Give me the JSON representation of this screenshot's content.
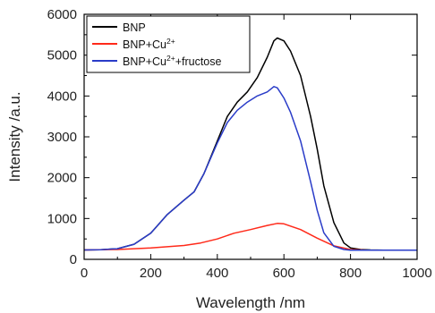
{
  "chart_data": {
    "type": "line",
    "xlabel": "Wavelength /nm",
    "ylabel": "Intensity /a.u.",
    "xlim": [
      0,
      1000
    ],
    "ylim": [
      0,
      6000
    ],
    "xticks": [
      0,
      200,
      400,
      600,
      800,
      1000
    ],
    "yticks": [
      0,
      1000,
      2000,
      3000,
      4000,
      5000,
      6000
    ],
    "grid": false,
    "legend_position": "top-left",
    "series": [
      {
        "name": "BNP",
        "name_parts": [
          {
            "text": "BNP"
          }
        ],
        "color": "#000000",
        "x": [
          0,
          50,
          100,
          150,
          200,
          250,
          300,
          330,
          360,
          400,
          430,
          460,
          490,
          520,
          550,
          570,
          580,
          600,
          620,
          650,
          680,
          700,
          720,
          750,
          780,
          800,
          830,
          860,
          900,
          950,
          1000
        ],
        "y": [
          230,
          235,
          260,
          370,
          640,
          1100,
          1450,
          1650,
          2100,
          2900,
          3500,
          3850,
          4100,
          4450,
          4950,
          5350,
          5420,
          5350,
          5100,
          4500,
          3500,
          2700,
          1800,
          900,
          400,
          280,
          240,
          230,
          225,
          225,
          225
        ]
      },
      {
        "name": "BNP+Cu2++",
        "name_parts": [
          {
            "text": "BNP+Cu"
          },
          {
            "text": "2+",
            "sup": true
          }
        ],
        "color": "#ff2a1a",
        "x": [
          0,
          100,
          200,
          300,
          350,
          400,
          450,
          500,
          550,
          580,
          600,
          650,
          700,
          750,
          800,
          850,
          900,
          1000
        ],
        "y": [
          230,
          240,
          280,
          340,
          400,
          500,
          640,
          730,
          830,
          880,
          870,
          730,
          520,
          330,
          240,
          225,
          225,
          225
        ]
      },
      {
        "name": "BNP+Cu2++fructose",
        "name_parts": [
          {
            "text": "BNP+Cu"
          },
          {
            "text": "2+",
            "sup": true
          },
          {
            "text": "+fructose"
          }
        ],
        "color": "#2a3cc8",
        "x": [
          0,
          50,
          100,
          150,
          200,
          250,
          300,
          330,
          360,
          400,
          430,
          460,
          490,
          520,
          550,
          570,
          580,
          600,
          620,
          650,
          680,
          700,
          720,
          750,
          780,
          800,
          850,
          900,
          1000
        ],
        "y": [
          230,
          235,
          260,
          370,
          640,
          1100,
          1450,
          1650,
          2100,
          2850,
          3350,
          3650,
          3850,
          4000,
          4100,
          4230,
          4200,
          3950,
          3600,
          2900,
          1900,
          1200,
          650,
          320,
          240,
          225,
          225,
          225,
          225
        ]
      }
    ]
  }
}
